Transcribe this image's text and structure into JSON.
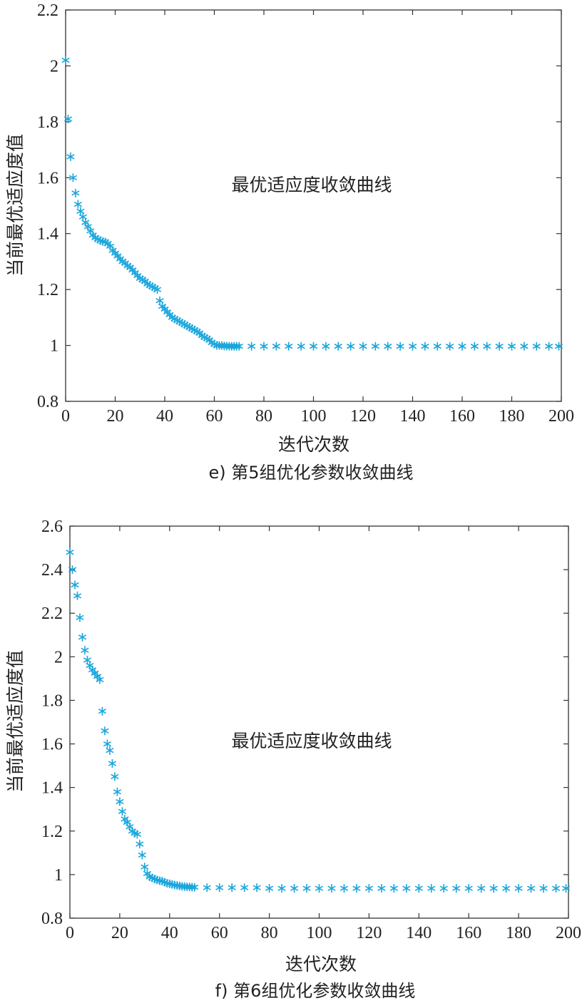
{
  "colors": {
    "marker": "#1aa6dc",
    "axis": "#333333",
    "text": "#222222",
    "background": "#ffffff"
  },
  "chart_data": [
    {
      "type": "scatter",
      "caption": "e) 第5组优化参数收敛曲线",
      "annotation": "最优适应度收敛曲线",
      "xlabel": "迭代次数",
      "ylabel": "当前最优适应度值",
      "xlim": [
        0,
        200
      ],
      "ylim": [
        0.8,
        2.2
      ],
      "x_ticks": [
        "0",
        "20",
        "40",
        "60",
        "80",
        "100",
        "120",
        "140",
        "160",
        "180",
        "200"
      ],
      "y_ticks": [
        "0.8",
        "1",
        "1.2",
        "1.4",
        "1.6",
        "1.8",
        "2",
        "2.2"
      ],
      "marker": "*",
      "grid": false,
      "series": [
        {
          "x": [
            0,
            1,
            2,
            3,
            4,
            5,
            6,
            7,
            8,
            9,
            10,
            11,
            12,
            13,
            14,
            15,
            16,
            17,
            18,
            19,
            20,
            21,
            22,
            23,
            24,
            25,
            26,
            27,
            28,
            29,
            30,
            31,
            32,
            33,
            34,
            35,
            36,
            37,
            38,
            39,
            40,
            41,
            42,
            43,
            44,
            45,
            46,
            47,
            48,
            49,
            50,
            51,
            52,
            53,
            54,
            55,
            56,
            57,
            58,
            59,
            60,
            61,
            62,
            63,
            64,
            65,
            66,
            67,
            68,
            69,
            70,
            75,
            80,
            85,
            90,
            95,
            100,
            105,
            110,
            115,
            120,
            125,
            130,
            135,
            140,
            145,
            150,
            155,
            160,
            165,
            170,
            175,
            180,
            185,
            190,
            195,
            199
          ],
          "y": [
            2.02,
            1.81,
            1.675,
            1.6,
            1.545,
            1.505,
            1.48,
            1.46,
            1.44,
            1.425,
            1.41,
            1.395,
            1.385,
            1.38,
            1.375,
            1.372,
            1.37,
            1.365,
            1.355,
            1.34,
            1.33,
            1.32,
            1.31,
            1.3,
            1.295,
            1.285,
            1.28,
            1.27,
            1.26,
            1.25,
            1.24,
            1.235,
            1.23,
            1.22,
            1.215,
            1.21,
            1.205,
            1.2,
            1.16,
            1.14,
            1.13,
            1.12,
            1.11,
            1.1,
            1.095,
            1.09,
            1.085,
            1.08,
            1.075,
            1.07,
            1.065,
            1.06,
            1.055,
            1.05,
            1.045,
            1.035,
            1.03,
            1.025,
            1.02,
            1.01,
            1.005,
            1.0,
            1.0,
            1.0,
            0.998,
            0.998,
            0.997,
            0.997,
            0.997,
            0.997,
            0.997,
            0.997,
            0.997,
            0.997,
            0.997,
            0.997,
            0.997,
            0.997,
            0.997,
            0.997,
            0.997,
            0.997,
            0.997,
            0.997,
            0.997,
            0.997,
            0.997,
            0.997,
            0.997,
            0.997,
            0.997,
            0.997,
            0.997,
            0.997,
            0.997,
            0.997,
            0.997
          ]
        }
      ]
    },
    {
      "type": "scatter",
      "caption": "f) 第6组优化参数收敛曲线",
      "annotation": "最优适应度收敛曲线",
      "xlabel": "迭代次数",
      "ylabel": "当前最优适应度值",
      "xlim": [
        0,
        200
      ],
      "ylim": [
        0.8,
        2.6
      ],
      "x_ticks": [
        "0",
        "20",
        "40",
        "60",
        "80",
        "100",
        "120",
        "140",
        "160",
        "180",
        "200"
      ],
      "y_ticks": [
        "0.8",
        "1",
        "1.2",
        "1.4",
        "1.6",
        "1.8",
        "2",
        "2.2",
        "2.4",
        "2.6"
      ],
      "marker": "*",
      "grid": false,
      "series": [
        {
          "x": [
            0,
            1,
            2,
            3,
            4,
            5,
            6,
            7,
            8,
            9,
            10,
            11,
            12,
            13,
            14,
            15,
            16,
            17,
            18,
            19,
            20,
            21,
            22,
            23,
            24,
            25,
            26,
            27,
            28,
            29,
            30,
            31,
            32,
            33,
            34,
            35,
            36,
            37,
            38,
            39,
            40,
            41,
            42,
            43,
            44,
            45,
            46,
            47,
            48,
            49,
            50,
            55,
            60,
            65,
            70,
            75,
            80,
            85,
            90,
            95,
            100,
            105,
            110,
            115,
            120,
            125,
            130,
            135,
            140,
            145,
            150,
            155,
            160,
            165,
            170,
            175,
            180,
            185,
            190,
            195,
            199
          ],
          "y": [
            2.48,
            2.4,
            2.33,
            2.28,
            2.18,
            2.09,
            2.03,
            1.985,
            1.96,
            1.94,
            1.925,
            1.91,
            1.895,
            1.75,
            1.66,
            1.6,
            1.57,
            1.51,
            1.45,
            1.38,
            1.335,
            1.29,
            1.255,
            1.24,
            1.22,
            1.2,
            1.19,
            1.185,
            1.14,
            1.09,
            1.035,
            1.005,
            0.99,
            0.985,
            0.98,
            0.975,
            0.972,
            0.97,
            0.965,
            0.96,
            0.958,
            0.955,
            0.952,
            0.95,
            0.948,
            0.946,
            0.945,
            0.944,
            0.943,
            0.942,
            0.942,
            0.94,
            0.94,
            0.94,
            0.94,
            0.94,
            0.937,
            0.937,
            0.937,
            0.937,
            0.937,
            0.937,
            0.937,
            0.937,
            0.937,
            0.937,
            0.937,
            0.937,
            0.937,
            0.937,
            0.937,
            0.937,
            0.937,
            0.937,
            0.937,
            0.937,
            0.937,
            0.937,
            0.937,
            0.937,
            0.937
          ]
        }
      ]
    }
  ]
}
